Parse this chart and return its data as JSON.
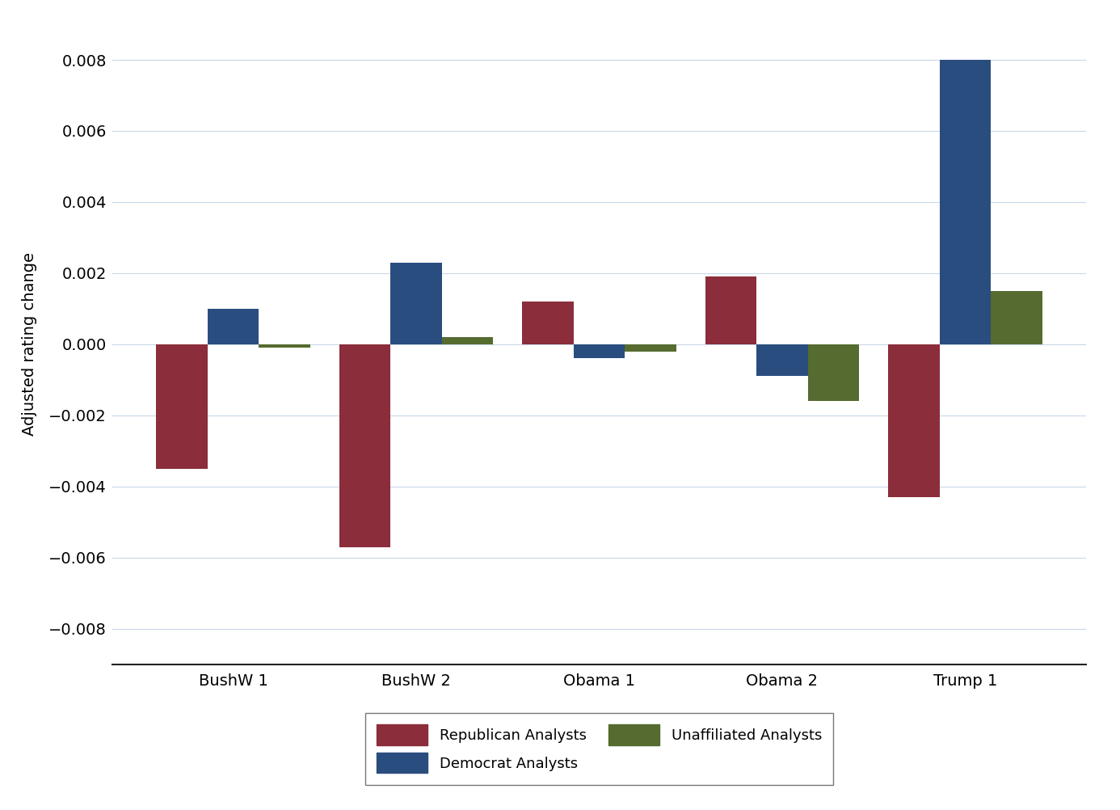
{
  "categories": [
    "BushW 1",
    "BushW 2",
    "Obama 1",
    "Obama 2",
    "Trump 1"
  ],
  "republican": [
    -0.0035,
    -0.0057,
    0.0012,
    0.0019,
    -0.0043
  ],
  "democrat": [
    0.001,
    0.0023,
    -0.0004,
    -0.0009,
    0.008
  ],
  "unaffiliated": [
    -0.0001,
    0.0002,
    -0.0002,
    -0.0016,
    0.0015
  ],
  "republican_color": "#8B2D3B",
  "democrat_color": "#2A4D7F",
  "unaffiliated_color": "#556B2F",
  "background_color": "#FFFFFF",
  "grid_color": "#C8D8E8",
  "ylabel": "Adjusted rating change",
  "ylim": [
    -0.009,
    0.009
  ],
  "yticks": [
    -0.008,
    -0.006,
    -0.004,
    -0.002,
    0.0,
    0.002,
    0.004,
    0.006,
    0.008
  ],
  "legend_labels": [
    "Republican Analysts",
    "Democrat Analysts",
    "Unaffiliated Analysts"
  ],
  "bar_width": 0.28,
  "tick_fontsize": 14,
  "label_fontsize": 14,
  "legend_fontsize": 13
}
